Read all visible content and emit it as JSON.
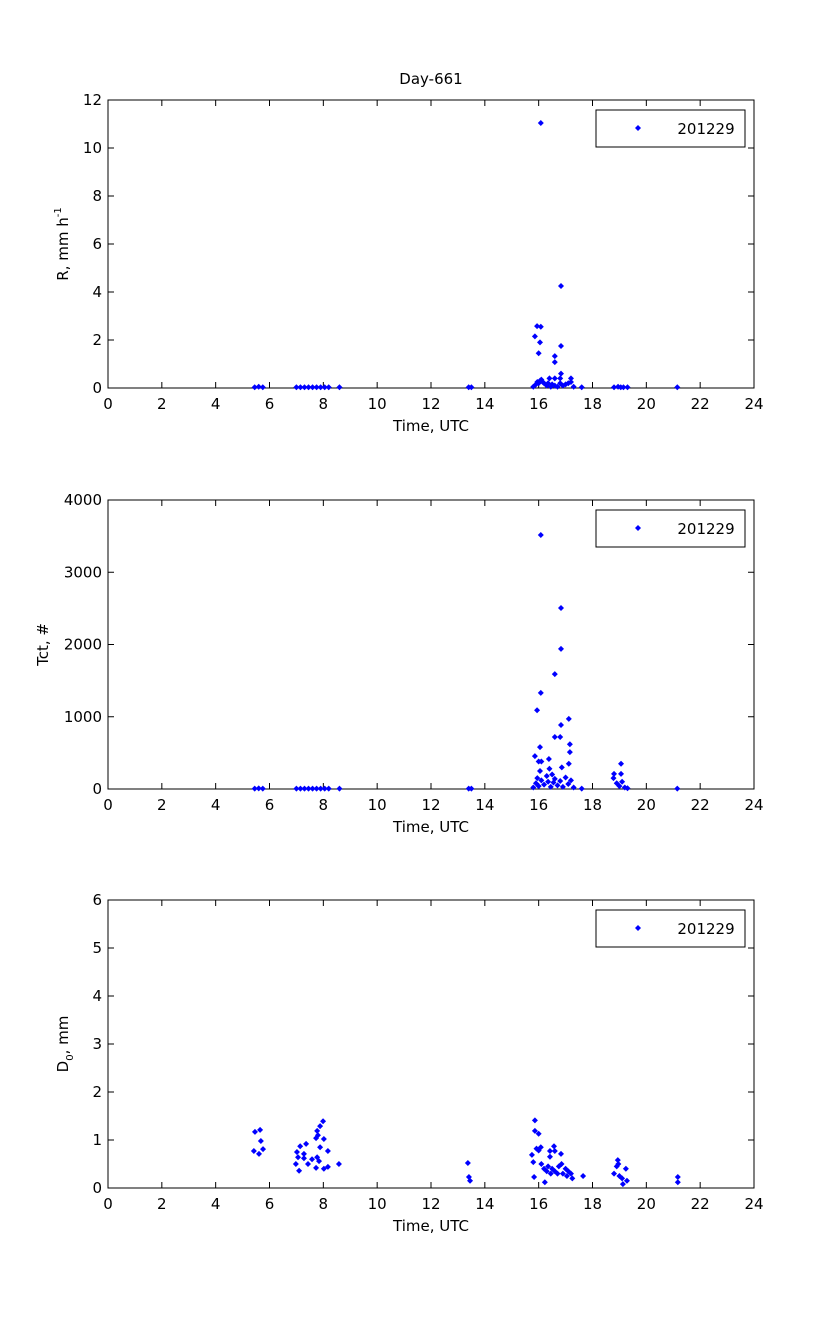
{
  "title": "Day-661",
  "marker_color": "#0000ff",
  "chart_data": [
    {
      "type": "scatter",
      "title": "Day-661",
      "xlabel": "Time, UTC",
      "ylabel": {
        "text": "R, mm h",
        "sup": "-1",
        "sub": "",
        "tail": ""
      },
      "xlim": [
        0,
        24
      ],
      "ylim": [
        0,
        12
      ],
      "xticks": [
        0,
        2,
        4,
        6,
        8,
        10,
        12,
        14,
        16,
        18,
        20,
        22,
        24
      ],
      "yticks": [
        0,
        2,
        4,
        6,
        8,
        10,
        12
      ],
      "legend": {
        "label": "201229",
        "position": "top-right"
      },
      "grid": false,
      "points": [
        [
          5.45,
          0.03
        ],
        [
          5.6,
          0.05
        ],
        [
          5.75,
          0.03
        ],
        [
          7.0,
          0.03
        ],
        [
          7.15,
          0.03
        ],
        [
          7.3,
          0.03
        ],
        [
          7.45,
          0.03
        ],
        [
          7.6,
          0.03
        ],
        [
          7.75,
          0.03
        ],
        [
          7.9,
          0.03
        ],
        [
          8.05,
          0.03
        ],
        [
          8.2,
          0.03
        ],
        [
          8.6,
          0.03
        ],
        [
          13.4,
          0.03
        ],
        [
          13.5,
          0.03
        ],
        [
          15.8,
          0.05
        ],
        [
          15.9,
          0.15
        ],
        [
          15.95,
          0.25
        ],
        [
          16.0,
          0.2
        ],
        [
          16.05,
          0.3
        ],
        [
          16.1,
          0.35
        ],
        [
          16.15,
          0.25
        ],
        [
          16.2,
          0.2
        ],
        [
          16.3,
          0.1
        ],
        [
          16.35,
          0.2
        ],
        [
          16.45,
          0.05
        ],
        [
          16.5,
          0.15
        ],
        [
          16.6,
          0.1
        ],
        [
          16.7,
          0.05
        ],
        [
          16.8,
          0.2
        ],
        [
          16.9,
          0.1
        ],
        [
          17.0,
          0.15
        ],
        [
          17.1,
          0.2
        ],
        [
          17.2,
          0.25
        ],
        [
          17.3,
          0.05
        ],
        [
          17.6,
          0.03
        ],
        [
          16.08,
          11.04
        ],
        [
          16.83,
          4.25
        ],
        [
          15.94,
          2.58
        ],
        [
          16.08,
          2.55
        ],
        [
          15.86,
          2.15
        ],
        [
          16.05,
          1.9
        ],
        [
          16.83,
          1.75
        ],
        [
          16.0,
          1.45
        ],
        [
          16.6,
          1.33
        ],
        [
          16.6,
          1.08
        ],
        [
          16.83,
          0.6
        ],
        [
          16.4,
          0.4
        ],
        [
          16.6,
          0.4
        ],
        [
          16.8,
          0.4
        ],
        [
          17.2,
          0.4
        ],
        [
          18.8,
          0.03
        ],
        [
          18.95,
          0.05
        ],
        [
          19.05,
          0.03
        ],
        [
          19.15,
          0.03
        ],
        [
          19.3,
          0.03
        ],
        [
          21.15,
          0.03
        ]
      ]
    },
    {
      "type": "scatter",
      "xlabel": "Time, UTC",
      "ylabel": {
        "text": "Tct, #",
        "sup": "",
        "sub": "",
        "tail": ""
      },
      "xlim": [
        0,
        24
      ],
      "ylim": [
        0,
        4000
      ],
      "xticks": [
        0,
        2,
        4,
        6,
        8,
        10,
        12,
        14,
        16,
        18,
        20,
        22,
        24
      ],
      "yticks": [
        0,
        1000,
        2000,
        3000,
        4000
      ],
      "legend": {
        "label": "201229",
        "position": "top-right"
      },
      "grid": false,
      "points": [
        [
          5.45,
          5
        ],
        [
          5.6,
          8
        ],
        [
          5.75,
          5
        ],
        [
          7.0,
          5
        ],
        [
          7.15,
          5
        ],
        [
          7.3,
          5
        ],
        [
          7.45,
          5
        ],
        [
          7.6,
          5
        ],
        [
          7.75,
          5
        ],
        [
          7.9,
          5
        ],
        [
          8.05,
          5
        ],
        [
          8.2,
          5
        ],
        [
          8.6,
          5
        ],
        [
          13.4,
          5
        ],
        [
          13.5,
          5
        ],
        [
          16.08,
          3515
        ],
        [
          16.83,
          2505
        ],
        [
          16.83,
          1940
        ],
        [
          16.6,
          1590
        ],
        [
          16.08,
          1330
        ],
        [
          15.94,
          1090
        ],
        [
          17.12,
          970
        ],
        [
          16.83,
          885
        ],
        [
          16.6,
          720
        ],
        [
          16.8,
          720
        ],
        [
          17.16,
          620
        ],
        [
          16.05,
          580
        ],
        [
          17.16,
          510
        ],
        [
          15.86,
          455
        ],
        [
          16.38,
          415
        ],
        [
          16.0,
          380
        ],
        [
          16.1,
          380
        ],
        [
          17.12,
          350
        ],
        [
          16.86,
          300
        ],
        [
          16.4,
          280
        ],
        [
          16.05,
          250
        ],
        [
          15.8,
          20
        ],
        [
          15.9,
          80
        ],
        [
          15.95,
          150
        ],
        [
          16.0,
          40
        ],
        [
          16.1,
          120
        ],
        [
          16.2,
          60
        ],
        [
          16.3,
          180
        ],
        [
          16.35,
          100
        ],
        [
          16.45,
          30
        ],
        [
          16.5,
          200
        ],
        [
          16.55,
          90
        ],
        [
          16.6,
          140
        ],
        [
          16.7,
          50
        ],
        [
          16.8,
          110
        ],
        [
          16.9,
          30
        ],
        [
          17.0,
          160
        ],
        [
          17.1,
          70
        ],
        [
          17.2,
          120
        ],
        [
          17.3,
          20
        ],
        [
          17.6,
          5
        ],
        [
          19.06,
          350
        ],
        [
          18.8,
          210
        ],
        [
          19.06,
          210
        ],
        [
          18.78,
          150
        ],
        [
          18.9,
          80
        ],
        [
          19.0,
          40
        ],
        [
          19.1,
          100
        ],
        [
          19.2,
          20
        ],
        [
          19.3,
          10
        ],
        [
          21.15,
          5
        ]
      ]
    },
    {
      "type": "scatter",
      "xlabel": "Time, UTC",
      "ylabel": {
        "text": "D",
        "sup": "",
        "sub": "0",
        "tail": ", mm"
      },
      "xlim": [
        0,
        24
      ],
      "ylim": [
        0,
        6
      ],
      "xticks": [
        0,
        2,
        4,
        6,
        8,
        10,
        12,
        14,
        16,
        18,
        20,
        22,
        24
      ],
      "yticks": [
        0,
        1,
        2,
        3,
        4,
        5,
        6
      ],
      "legend": {
        "label": "201229",
        "position": "top-right"
      },
      "grid": false,
      "points": [
        [
          5.46,
          1.17
        ],
        [
          5.65,
          1.21
        ],
        [
          5.68,
          0.98
        ],
        [
          5.42,
          0.77
        ],
        [
          5.61,
          0.71
        ],
        [
          5.76,
          0.81
        ],
        [
          7.02,
          0.75
        ],
        [
          7.14,
          0.87
        ],
        [
          7.36,
          0.92
        ],
        [
          7.28,
          0.71
        ],
        [
          7.06,
          0.64
        ],
        [
          6.98,
          0.5
        ],
        [
          7.1,
          0.36
        ],
        [
          7.28,
          0.62
        ],
        [
          7.43,
          0.5
        ],
        [
          7.58,
          0.6
        ],
        [
          7.73,
          0.42
        ],
        [
          7.77,
          0.64
        ],
        [
          7.88,
          0.85
        ],
        [
          7.73,
          1.04
        ],
        [
          7.8,
          1.1
        ],
        [
          7.77,
          1.19
        ],
        [
          7.88,
          1.29
        ],
        [
          7.99,
          1.39
        ],
        [
          8.02,
          1.02
        ],
        [
          8.17,
          0.77
        ],
        [
          8.02,
          0.4
        ],
        [
          8.17,
          0.44
        ],
        [
          8.58,
          0.5
        ],
        [
          7.84,
          0.56
        ],
        [
          13.37,
          0.52
        ],
        [
          13.41,
          0.23
        ],
        [
          13.45,
          0.15
        ],
        [
          15.86,
          1.41
        ],
        [
          15.86,
          1.19
        ],
        [
          16.0,
          1.13
        ],
        [
          15.92,
          0.82
        ],
        [
          16.0,
          0.78
        ],
        [
          16.08,
          0.85
        ],
        [
          15.75,
          0.69
        ],
        [
          15.8,
          0.54
        ],
        [
          15.83,
          0.23
        ],
        [
          16.23,
          0.12
        ],
        [
          16.57,
          0.87
        ],
        [
          16.42,
          0.77
        ],
        [
          16.6,
          0.77
        ],
        [
          16.83,
          0.71
        ],
        [
          16.42,
          0.65
        ],
        [
          16.1,
          0.5
        ],
        [
          16.2,
          0.4
        ],
        [
          16.3,
          0.35
        ],
        [
          16.35,
          0.45
        ],
        [
          16.45,
          0.3
        ],
        [
          16.5,
          0.4
        ],
        [
          16.6,
          0.35
        ],
        [
          16.7,
          0.3
        ],
        [
          16.75,
          0.45
        ],
        [
          16.85,
          0.5
        ],
        [
          16.9,
          0.3
        ],
        [
          17.0,
          0.4
        ],
        [
          17.05,
          0.25
        ],
        [
          17.1,
          0.35
        ],
        [
          17.2,
          0.3
        ],
        [
          17.25,
          0.2
        ],
        [
          17.65,
          0.25
        ],
        [
          18.94,
          0.58
        ],
        [
          18.96,
          0.5
        ],
        [
          18.9,
          0.45
        ],
        [
          19.24,
          0.4
        ],
        [
          18.8,
          0.3
        ],
        [
          19.1,
          0.2
        ],
        [
          19.28,
          0.15
        ],
        [
          19.13,
          0.08
        ],
        [
          19.0,
          0.25
        ],
        [
          21.17,
          0.23
        ],
        [
          21.17,
          0.12
        ]
      ]
    }
  ]
}
